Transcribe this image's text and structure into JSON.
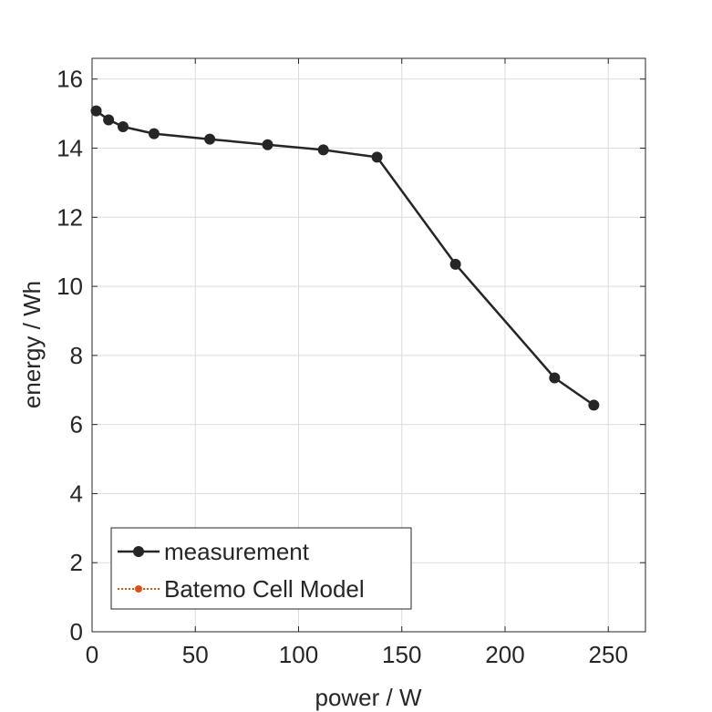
{
  "chart_data": {
    "type": "line",
    "title": "",
    "xlabel": "power / W",
    "ylabel": "energy / Wh",
    "xlim": [
      0,
      268
    ],
    "ylim": [
      0,
      16.6
    ],
    "xticks": [
      0,
      50,
      100,
      150,
      200,
      250
    ],
    "yticks": [
      0,
      2,
      4,
      6,
      8,
      10,
      12,
      14,
      16
    ],
    "xtick_labels": [
      "0",
      "50",
      "100",
      "150",
      "200",
      "250"
    ],
    "ytick_labels": [
      "0",
      "2",
      "4",
      "6",
      "8",
      "10",
      "12",
      "14",
      "16"
    ],
    "grid": true,
    "legend_position": "bottom-left",
    "series": [
      {
        "name": "measurement",
        "color": "#262626",
        "line_style": "solid",
        "marker": "circle",
        "x": [
          2,
          8,
          15,
          30,
          57,
          85,
          112,
          138,
          176,
          224,
          243
        ],
        "y": [
          15.08,
          14.82,
          14.62,
          14.42,
          14.26,
          14.1,
          13.95,
          13.74,
          10.64,
          7.35,
          6.56
        ]
      },
      {
        "name": "Batemo Cell Model",
        "color": "#d95319",
        "line_style": "dotted",
        "marker": "circle",
        "x": [],
        "y": []
      }
    ]
  }
}
